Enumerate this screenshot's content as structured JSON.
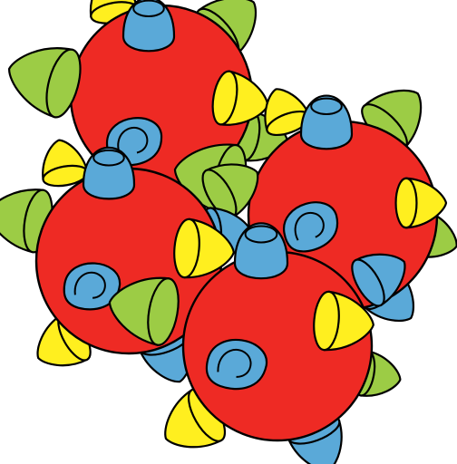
{
  "illustration": {
    "subject": "cluster-of-spiked-balls",
    "colors": {
      "ball_fill": "#ee2a24",
      "spike_blue": "#5aa9d8",
      "spike_yellow": "#ffef1f",
      "spike_green": "#9ccc45",
      "outline": "#000000",
      "background": "#ffffff"
    }
  }
}
